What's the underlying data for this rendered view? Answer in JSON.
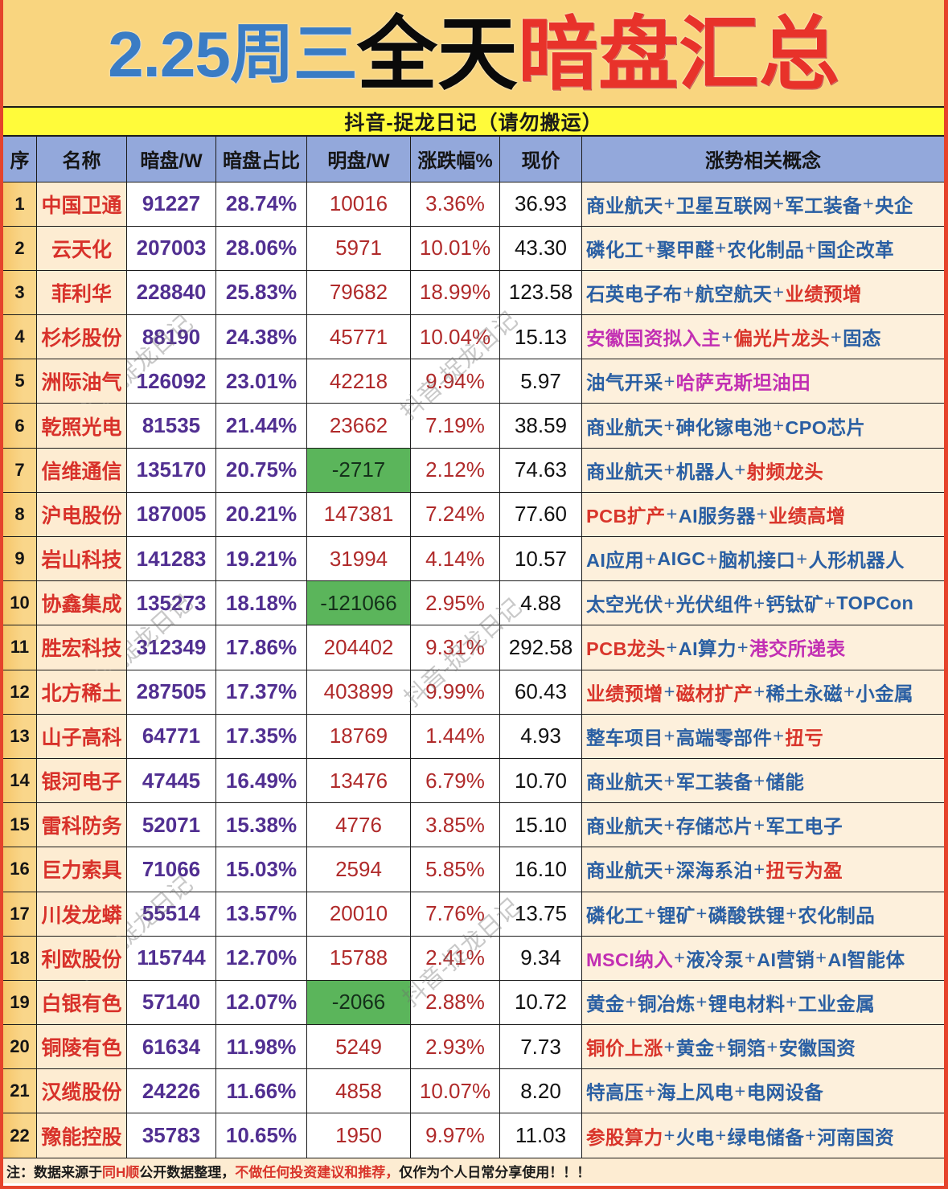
{
  "title": {
    "blue_part": "2.25周三",
    "black_part": "全天",
    "red_part": "暗盘汇总"
  },
  "subtitle": "抖音-捉龙日记（请勿搬运）",
  "watermark": "抖音-捉龙日记",
  "colors": {
    "blue": "#2a5fa3",
    "red": "#d9352b",
    "magenta": "#c22fb3",
    "black": "#1a1a1a",
    "highlight_green": "#5bb55b",
    "frame_red": "#e5432b",
    "title_bg": "#f9d57f",
    "band_yellow": "#fffb3a",
    "header_blue": "#93a8db"
  },
  "table": {
    "headers": {
      "seq": "序",
      "name": "名称",
      "dark_pool": "暗盘/W",
      "dark_ratio": "暗盘占比",
      "open_pool": "明盘/W",
      "change_pct": "涨跌幅%",
      "price": "现价",
      "concepts": "涨势相关概念"
    },
    "separator": "+",
    "rows": [
      {
        "seq": "1",
        "name": "中国卫通",
        "dark_pool": "91227",
        "dark_ratio": "28.74%",
        "open_pool": "10016",
        "change_pct": "3.36%",
        "price": "36.93",
        "open_highlight": false,
        "concepts": [
          {
            "text": "商业航天",
            "color": "blue"
          },
          {
            "text": "卫星互联网",
            "color": "blue"
          },
          {
            "text": "军工装备",
            "color": "blue"
          },
          {
            "text": "央企",
            "color": "blue"
          }
        ]
      },
      {
        "seq": "2",
        "name": "云天化",
        "dark_pool": "207003",
        "dark_ratio": "28.06%",
        "open_pool": "5971",
        "change_pct": "10.01%",
        "price": "43.30",
        "open_highlight": false,
        "concepts": [
          {
            "text": "磷化工",
            "color": "blue"
          },
          {
            "text": "聚甲醛",
            "color": "blue"
          },
          {
            "text": "农化制品",
            "color": "blue"
          },
          {
            "text": "国企改革",
            "color": "blue"
          }
        ]
      },
      {
        "seq": "3",
        "name": "菲利华",
        "dark_pool": "228840",
        "dark_ratio": "25.83%",
        "open_pool": "79682",
        "change_pct": "18.99%",
        "price": "123.58",
        "open_highlight": false,
        "concepts": [
          {
            "text": "石英电子布",
            "color": "blue"
          },
          {
            "text": "航空航天",
            "color": "blue"
          },
          {
            "text": "业绩预增",
            "color": "red"
          }
        ]
      },
      {
        "seq": "4",
        "name": "杉杉股份",
        "dark_pool": "88190",
        "dark_ratio": "24.38%",
        "open_pool": "45771",
        "change_pct": "10.04%",
        "price": "15.13",
        "open_highlight": false,
        "concepts": [
          {
            "text": "安徽国资拟入主",
            "color": "magenta"
          },
          {
            "text": "偏光片龙头",
            "color": "red"
          },
          {
            "text": "固态",
            "color": "blue"
          }
        ]
      },
      {
        "seq": "5",
        "name": "洲际油气",
        "dark_pool": "126092",
        "dark_ratio": "23.01%",
        "open_pool": "42218",
        "change_pct": "9.94%",
        "price": "5.97",
        "open_highlight": false,
        "concepts": [
          {
            "text": "油气开采",
            "color": "blue"
          },
          {
            "text": "哈萨克斯坦油田",
            "color": "magenta"
          }
        ]
      },
      {
        "seq": "6",
        "name": "乾照光电",
        "dark_pool": "81535",
        "dark_ratio": "21.44%",
        "open_pool": "23662",
        "change_pct": "7.19%",
        "price": "38.59",
        "open_highlight": false,
        "concepts": [
          {
            "text": "商业航天",
            "color": "blue"
          },
          {
            "text": "砷化镓电池",
            "color": "blue"
          },
          {
            "text": "CPO芯片",
            "color": "blue"
          }
        ]
      },
      {
        "seq": "7",
        "name": "信维通信",
        "dark_pool": "135170",
        "dark_ratio": "20.75%",
        "open_pool": "-2717",
        "change_pct": "2.12%",
        "price": "74.63",
        "open_highlight": true,
        "concepts": [
          {
            "text": "商业航天",
            "color": "blue"
          },
          {
            "text": "机器人",
            "color": "blue"
          },
          {
            "text": "射频龙头",
            "color": "red"
          }
        ]
      },
      {
        "seq": "8",
        "name": "沪电股份",
        "dark_pool": "187005",
        "dark_ratio": "20.21%",
        "open_pool": "147381",
        "change_pct": "7.24%",
        "price": "77.60",
        "open_highlight": false,
        "concepts": [
          {
            "text": "PCB扩产",
            "color": "red"
          },
          {
            "text": "AI服务器",
            "color": "blue"
          },
          {
            "text": "业绩高增",
            "color": "red"
          }
        ]
      },
      {
        "seq": "9",
        "name": "岩山科技",
        "dark_pool": "141283",
        "dark_ratio": "19.21%",
        "open_pool": "31994",
        "change_pct": "4.14%",
        "price": "10.57",
        "open_highlight": false,
        "concepts": [
          {
            "text": "AI应用",
            "color": "blue"
          },
          {
            "text": "AIGC",
            "color": "blue"
          },
          {
            "text": "脑机接口",
            "color": "blue"
          },
          {
            "text": "人形机器人",
            "color": "blue"
          }
        ]
      },
      {
        "seq": "10",
        "name": "协鑫集成",
        "dark_pool": "135273",
        "dark_ratio": "18.18%",
        "open_pool": "-121066",
        "change_pct": "2.95%",
        "price": "4.88",
        "open_highlight": true,
        "concepts": [
          {
            "text": "太空光伏",
            "color": "blue"
          },
          {
            "text": "光伏组件",
            "color": "blue"
          },
          {
            "text": "钙钛矿",
            "color": "blue"
          },
          {
            "text": "TOPCon",
            "color": "blue"
          }
        ]
      },
      {
        "seq": "11",
        "name": "胜宏科技",
        "dark_pool": "312349",
        "dark_ratio": "17.86%",
        "open_pool": "204402",
        "change_pct": "9.31%",
        "price": "292.58",
        "open_highlight": false,
        "concepts": [
          {
            "text": "PCB龙头",
            "color": "red"
          },
          {
            "text": "AI算力",
            "color": "blue"
          },
          {
            "text": "港交所递表",
            "color": "magenta"
          }
        ]
      },
      {
        "seq": "12",
        "name": "北方稀土",
        "dark_pool": "287505",
        "dark_ratio": "17.37%",
        "open_pool": "403899",
        "change_pct": "9.99%",
        "price": "60.43",
        "open_highlight": false,
        "concepts": [
          {
            "text": "业绩预增",
            "color": "red"
          },
          {
            "text": "磁材扩产",
            "color": "red"
          },
          {
            "text": "稀土永磁",
            "color": "blue"
          },
          {
            "text": "小金属",
            "color": "blue"
          }
        ]
      },
      {
        "seq": "13",
        "name": "山子高科",
        "dark_pool": "64771",
        "dark_ratio": "17.35%",
        "open_pool": "18769",
        "change_pct": "1.44%",
        "price": "4.93",
        "open_highlight": false,
        "concepts": [
          {
            "text": "整车项目",
            "color": "blue"
          },
          {
            "text": "高端零部件",
            "color": "blue"
          },
          {
            "text": "扭亏",
            "color": "red"
          }
        ]
      },
      {
        "seq": "14",
        "name": "银河电子",
        "dark_pool": "47445",
        "dark_ratio": "16.49%",
        "open_pool": "13476",
        "change_pct": "6.79%",
        "price": "10.70",
        "open_highlight": false,
        "concepts": [
          {
            "text": "商业航天",
            "color": "blue"
          },
          {
            "text": "军工装备",
            "color": "blue"
          },
          {
            "text": "储能",
            "color": "blue"
          }
        ]
      },
      {
        "seq": "15",
        "name": "雷科防务",
        "dark_pool": "52071",
        "dark_ratio": "15.38%",
        "open_pool": "4776",
        "change_pct": "3.85%",
        "price": "15.10",
        "open_highlight": false,
        "concepts": [
          {
            "text": "商业航天",
            "color": "blue"
          },
          {
            "text": "存储芯片",
            "color": "blue"
          },
          {
            "text": "军工电子",
            "color": "blue"
          }
        ]
      },
      {
        "seq": "16",
        "name": "巨力索具",
        "dark_pool": "71066",
        "dark_ratio": "15.03%",
        "open_pool": "2594",
        "change_pct": "5.85%",
        "price": "16.10",
        "open_highlight": false,
        "concepts": [
          {
            "text": "商业航天",
            "color": "blue"
          },
          {
            "text": "深海系泊",
            "color": "blue"
          },
          {
            "text": "扭亏为盈",
            "color": "red"
          }
        ]
      },
      {
        "seq": "17",
        "name": "川发龙蟒",
        "dark_pool": "55514",
        "dark_ratio": "13.57%",
        "open_pool": "20010",
        "change_pct": "7.76%",
        "price": "13.75",
        "open_highlight": false,
        "concepts": [
          {
            "text": "磷化工",
            "color": "blue"
          },
          {
            "text": "锂矿",
            "color": "blue"
          },
          {
            "text": "磷酸铁锂",
            "color": "blue"
          },
          {
            "text": "农化制品",
            "color": "blue"
          }
        ]
      },
      {
        "seq": "18",
        "name": "利欧股份",
        "dark_pool": "115744",
        "dark_ratio": "12.70%",
        "open_pool": "15788",
        "change_pct": "2.41%",
        "price": "9.34",
        "open_highlight": false,
        "concepts": [
          {
            "text": "MSCI纳入",
            "color": "magenta"
          },
          {
            "text": "液冷泵",
            "color": "blue"
          },
          {
            "text": "AI营销",
            "color": "blue"
          },
          {
            "text": "AI智能体",
            "color": "blue"
          }
        ]
      },
      {
        "seq": "19",
        "name": "白银有色",
        "dark_pool": "57140",
        "dark_ratio": "12.07%",
        "open_pool": "-2066",
        "change_pct": "2.88%",
        "price": "10.72",
        "open_highlight": true,
        "concepts": [
          {
            "text": "黄金",
            "color": "blue"
          },
          {
            "text": "铜冶炼",
            "color": "blue"
          },
          {
            "text": "锂电材料",
            "color": "blue"
          },
          {
            "text": "工业金属",
            "color": "blue"
          }
        ]
      },
      {
        "seq": "20",
        "name": "铜陵有色",
        "dark_pool": "61634",
        "dark_ratio": "11.98%",
        "open_pool": "5249",
        "change_pct": "2.93%",
        "price": "7.73",
        "open_highlight": false,
        "concepts": [
          {
            "text": "铜价上涨",
            "color": "red"
          },
          {
            "text": "黄金",
            "color": "blue"
          },
          {
            "text": "铜箔",
            "color": "blue"
          },
          {
            "text": "安徽国资",
            "color": "blue"
          }
        ]
      },
      {
        "seq": "21",
        "name": "汉缆股份",
        "dark_pool": "24226",
        "dark_ratio": "11.66%",
        "open_pool": "4858",
        "change_pct": "10.07%",
        "price": "8.20",
        "open_highlight": false,
        "concepts": [
          {
            "text": "特高压",
            "color": "blue"
          },
          {
            "text": "海上风电",
            "color": "blue"
          },
          {
            "text": "电网设备",
            "color": "blue"
          }
        ]
      },
      {
        "seq": "22",
        "name": "豫能控股",
        "dark_pool": "35783",
        "dark_ratio": "10.65%",
        "open_pool": "1950",
        "change_pct": "9.97%",
        "price": "11.03",
        "open_highlight": false,
        "concepts": [
          {
            "text": "参股算力",
            "color": "red"
          },
          {
            "text": "火电",
            "color": "blue"
          },
          {
            "text": "绿电储备",
            "color": "blue"
          },
          {
            "text": "河南国资",
            "color": "blue"
          }
        ]
      }
    ]
  },
  "footer": {
    "segments": [
      {
        "text": "注：数据来源于",
        "color": "black"
      },
      {
        "text": "同H顺",
        "color": "red"
      },
      {
        "text": "公开数据整理，",
        "color": "black"
      },
      {
        "text": "不做任何投资建议和推荐，",
        "color": "red"
      },
      {
        "text": "仅作为个人日常分享使用！！！",
        "color": "black"
      }
    ]
  }
}
